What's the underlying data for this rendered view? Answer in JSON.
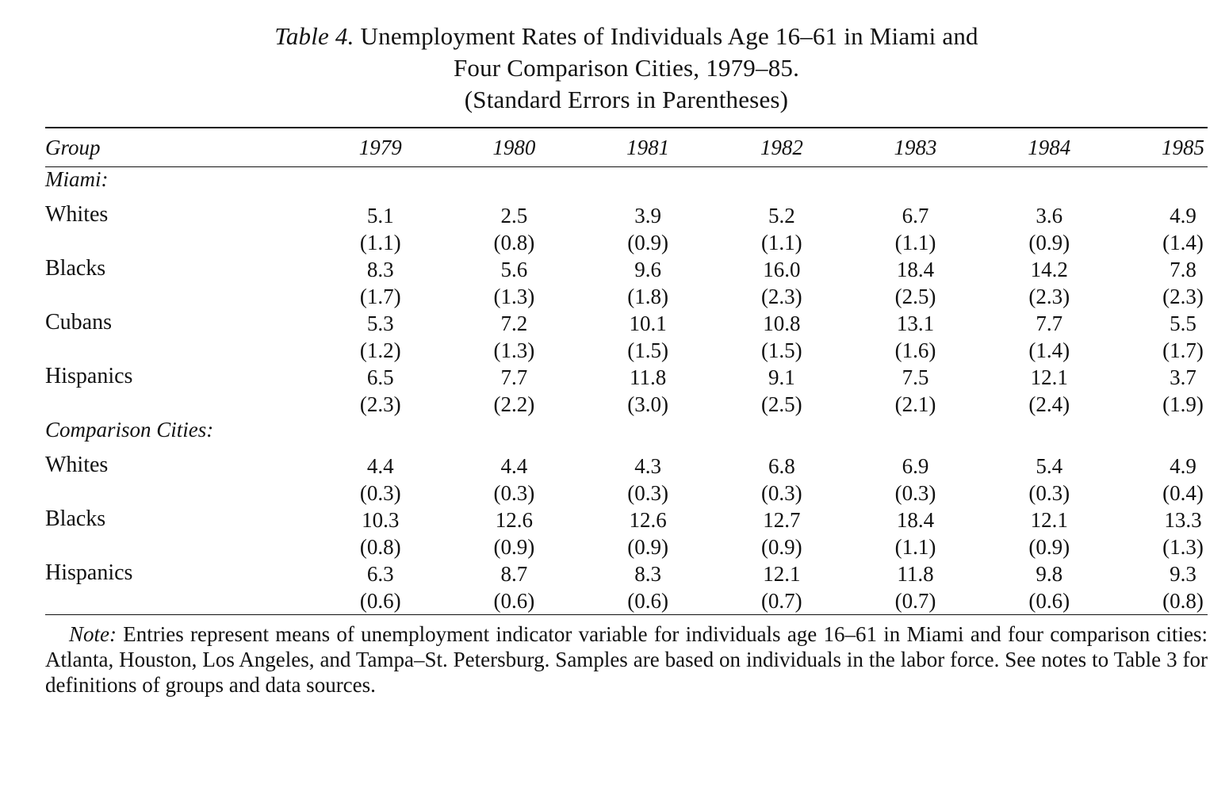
{
  "caption": {
    "label": "Table 4.",
    "line1": "Unemployment Rates of Individuals Age 16–61 in Miami and",
    "line2": "Four Comparison Cities, 1979–85.",
    "line3": "(Standard Errors in Parentheses)"
  },
  "header": {
    "group": "Group",
    "years": [
      "1979",
      "1980",
      "1981",
      "1982",
      "1983",
      "1984",
      "1985"
    ]
  },
  "sections": [
    {
      "title": "Miami:",
      "rows": [
        {
          "label": "Whites",
          "values": [
            "5.1",
            "2.5",
            "3.9",
            "5.2",
            "6.7",
            "3.6",
            "4.9"
          ],
          "se": [
            "(1.1)",
            "(0.8)",
            "(0.9)",
            "(1.1)",
            "(1.1)",
            "(0.9)",
            "(1.4)"
          ]
        },
        {
          "label": "Blacks",
          "values": [
            "8.3",
            "5.6",
            "9.6",
            "16.0",
            "18.4",
            "14.2",
            "7.8"
          ],
          "se": [
            "(1.7)",
            "(1.3)",
            "(1.8)",
            "(2.3)",
            "(2.5)",
            "(2.3)",
            "(2.3)"
          ]
        },
        {
          "label": "Cubans",
          "values": [
            "5.3",
            "7.2",
            "10.1",
            "10.8",
            "13.1",
            "7.7",
            "5.5"
          ],
          "se": [
            "(1.2)",
            "(1.3)",
            "(1.5)",
            "(1.5)",
            "(1.6)",
            "(1.4)",
            "(1.7)"
          ]
        },
        {
          "label": "Hispanics",
          "values": [
            "6.5",
            "7.7",
            "11.8",
            "9.1",
            "7.5",
            "12.1",
            "3.7"
          ],
          "se": [
            "(2.3)",
            "(2.2)",
            "(3.0)",
            "(2.5)",
            "(2.1)",
            "(2.4)",
            "(1.9)"
          ]
        }
      ]
    },
    {
      "title": "Comparison Cities:",
      "rows": [
        {
          "label": "Whites",
          "values": [
            "4.4",
            "4.4",
            "4.3",
            "6.8",
            "6.9",
            "5.4",
            "4.9"
          ],
          "se": [
            "(0.3)",
            "(0.3)",
            "(0.3)",
            "(0.3)",
            "(0.3)",
            "(0.3)",
            "(0.4)"
          ]
        },
        {
          "label": "Blacks",
          "values": [
            "10.3",
            "12.6",
            "12.6",
            "12.7",
            "18.4",
            "12.1",
            "13.3"
          ],
          "se": [
            "(0.8)",
            "(0.9)",
            "(0.9)",
            "(0.9)",
            "(1.1)",
            "(0.9)",
            "(1.3)"
          ]
        },
        {
          "label": "Hispanics",
          "values": [
            "6.3",
            "8.7",
            "8.3",
            "12.1",
            "11.8",
            "9.8",
            "9.3"
          ],
          "se": [
            "(0.6)",
            "(0.6)",
            "(0.6)",
            "(0.7)",
            "(0.7)",
            "(0.6)",
            "(0.8)"
          ]
        }
      ]
    }
  ],
  "note": {
    "label": "Note:",
    "text": "Entries represent means of unemployment indicator variable for individuals age 16–61 in Miami and four comparison cities: Atlanta, Houston, Los Angeles, and Tampa–St. Petersburg. Samples are based on individuals in the labor force. See notes to Table 3 for definitions of groups and data sources."
  }
}
